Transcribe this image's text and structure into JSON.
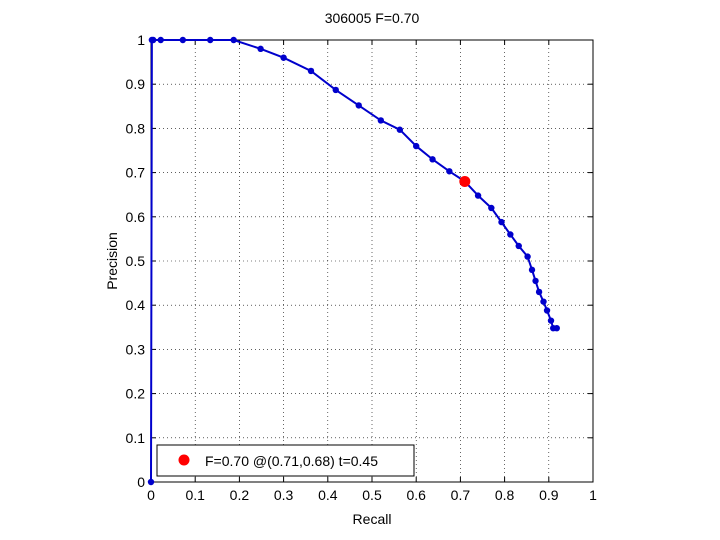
{
  "chart_data": {
    "type": "line",
    "title": "306005 F=0.70",
    "xlabel": "Recall",
    "ylabel": "Precision",
    "xlim": [
      0,
      1
    ],
    "ylim": [
      0,
      1
    ],
    "grid": true,
    "xticks": [
      "0",
      "0.1",
      "0.2",
      "0.3",
      "0.4",
      "0.5",
      "0.6",
      "0.7",
      "0.8",
      "0.9",
      "1"
    ],
    "yticks": [
      "0",
      "0.1",
      "0.2",
      "0.3",
      "0.4",
      "0.5",
      "0.6",
      "0.7",
      "0.8",
      "0.9",
      "1"
    ],
    "series": [
      {
        "color": "#0000cc",
        "x": [
          0.0,
          0.002,
          0.005,
          0.022,
          0.072,
          0.134,
          0.187,
          0.248,
          0.3,
          0.362,
          0.418,
          0.47,
          0.52,
          0.563,
          0.6,
          0.637,
          0.675,
          0.71,
          0.74,
          0.77,
          0.793,
          0.813,
          0.832,
          0.852,
          0.862,
          0.87,
          0.878,
          0.888,
          0.896,
          0.905,
          0.91,
          0.918
        ],
        "y": [
          0.0,
          1.0,
          1.0,
          1.0,
          1.0,
          1.0,
          1.0,
          0.98,
          0.96,
          0.93,
          0.887,
          0.852,
          0.818,
          0.797,
          0.76,
          0.73,
          0.703,
          0.68,
          0.648,
          0.62,
          0.588,
          0.56,
          0.534,
          0.51,
          0.48,
          0.455,
          0.43,
          0.408,
          0.388,
          0.365,
          0.348,
          0.348
        ]
      }
    ],
    "highlight": {
      "x": 0.71,
      "y": 0.68,
      "color": "#ff0000"
    },
    "legend": {
      "position": "bottom-left",
      "text": "F=0.70 @(0.71,0.68) t=0.45"
    }
  }
}
